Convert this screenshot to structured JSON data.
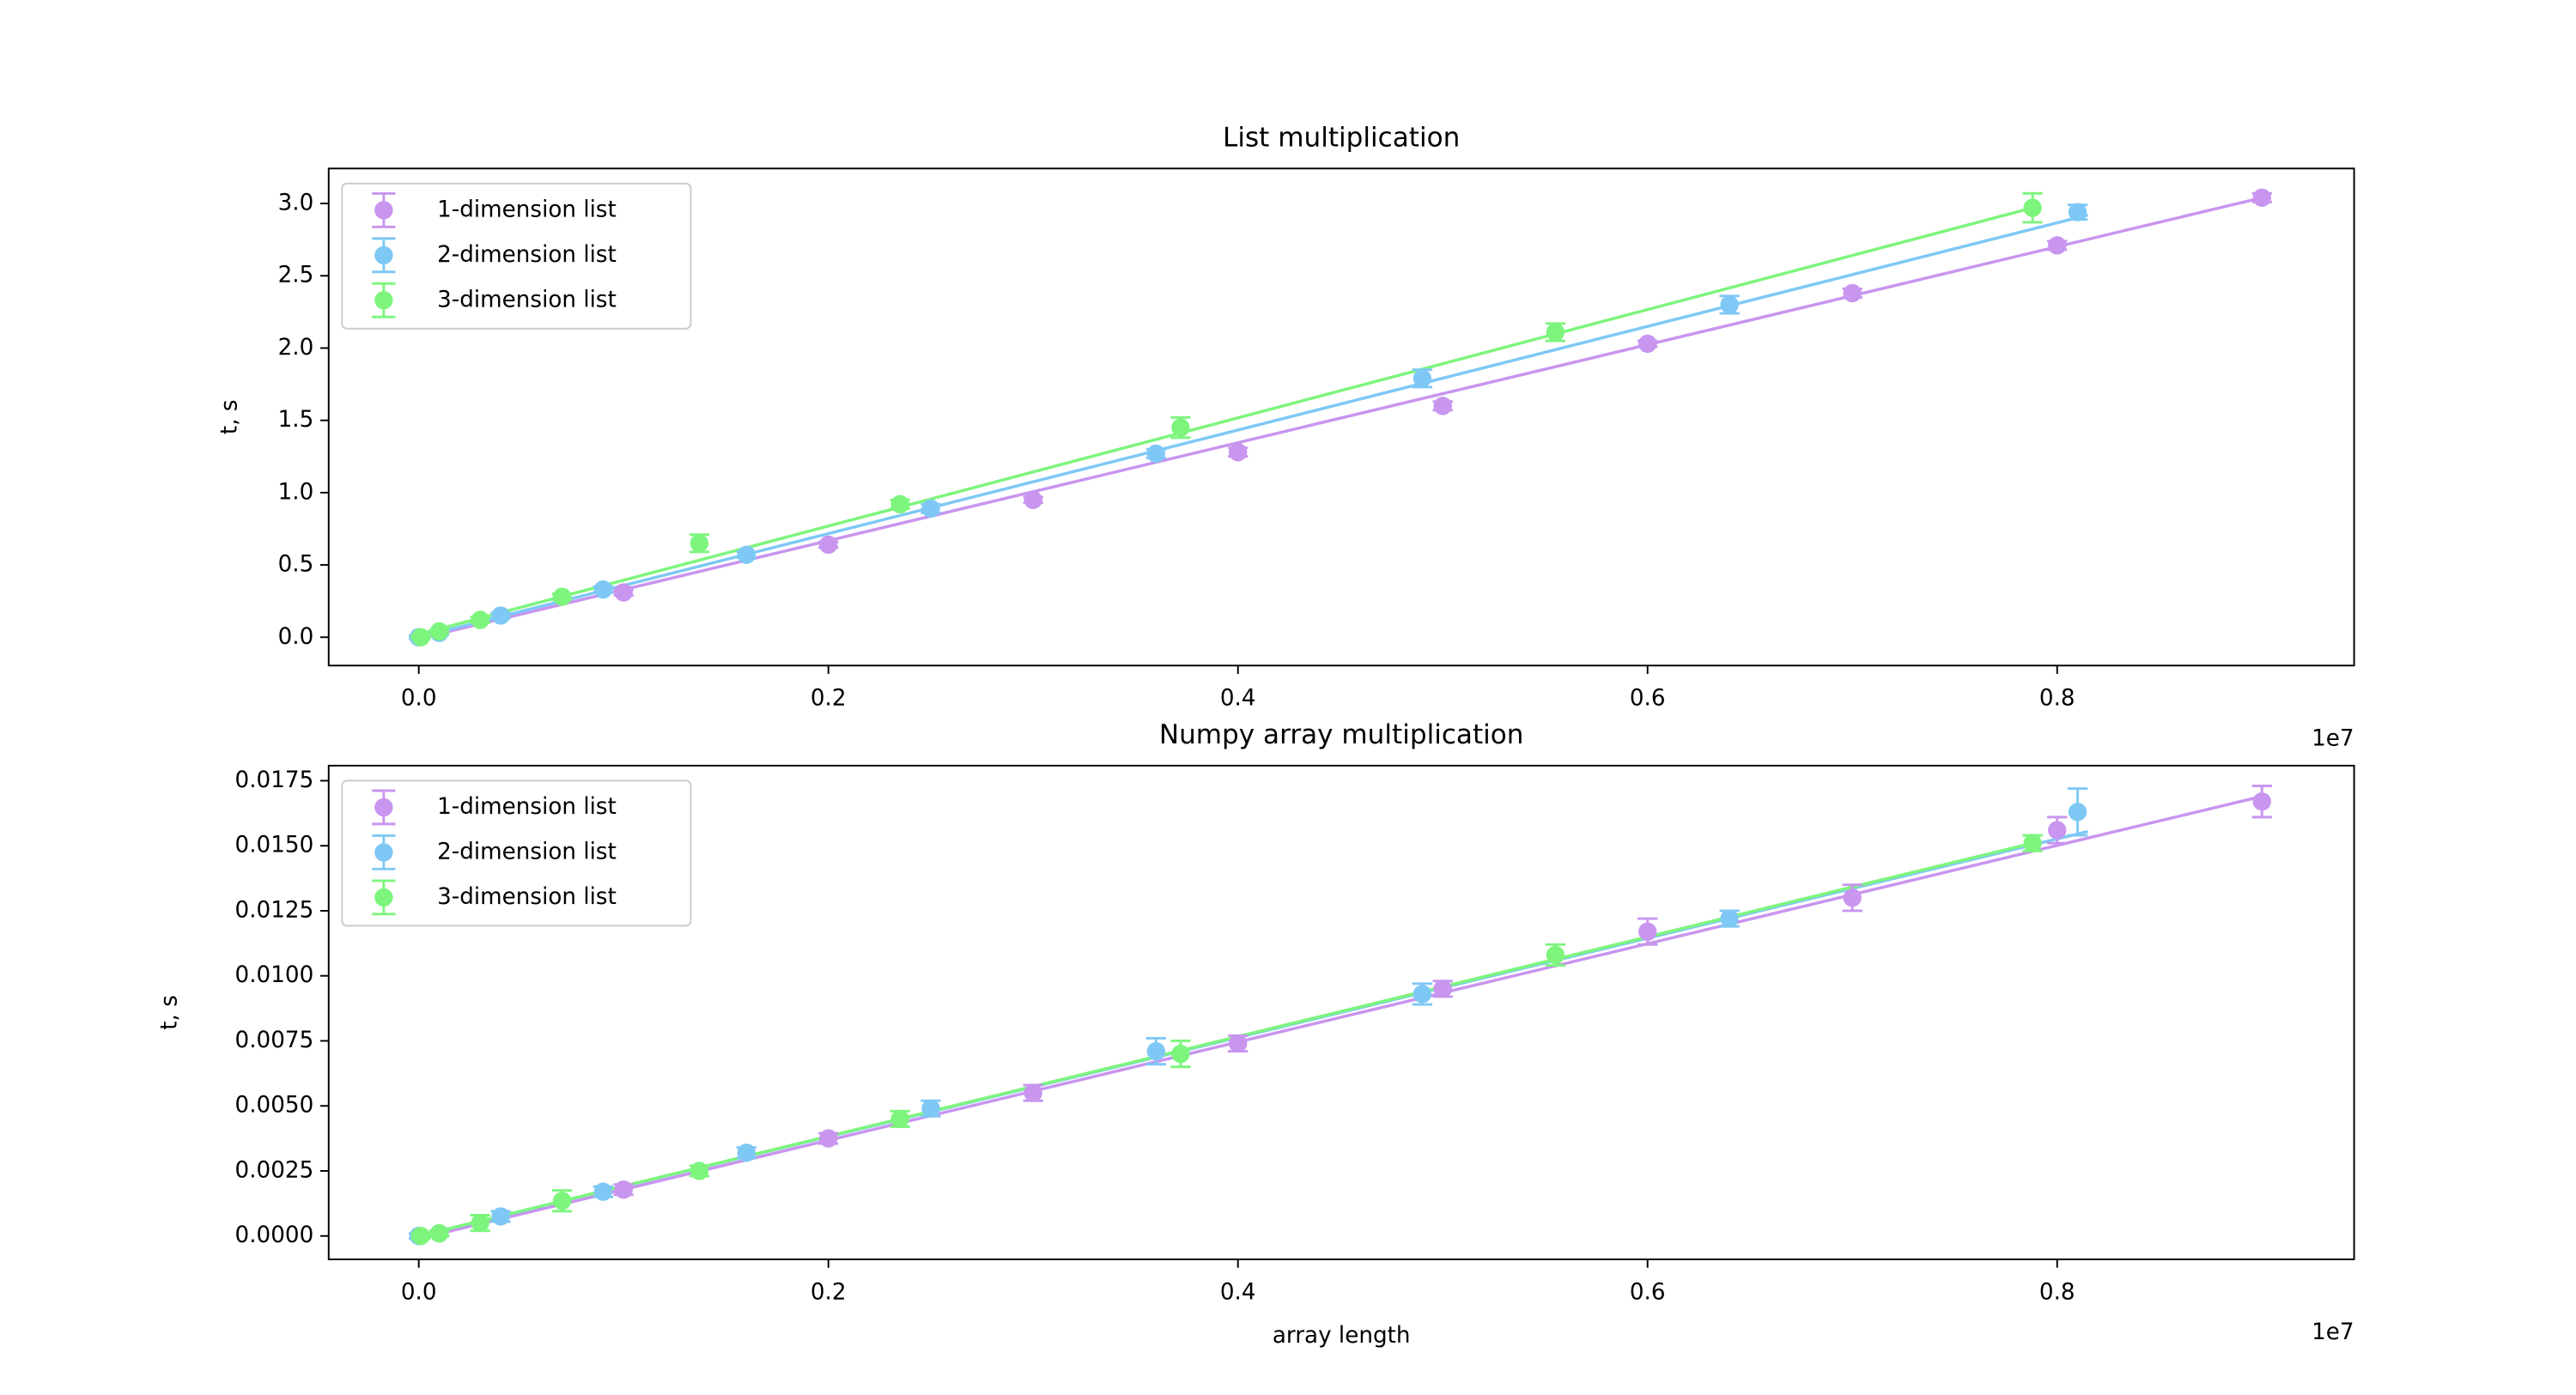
{
  "chart_data": [
    {
      "type": "errorbar",
      "title": "List multiplication",
      "ylabel": "t, s",
      "x_offset_label": "1e7",
      "xlim": [
        -0.044,
        0.945
      ],
      "ylim": [
        -0.196,
        3.242
      ],
      "xticks": [
        {
          "value": 0,
          "label": "0.0"
        },
        0.2,
        0.4,
        0.6,
        0.8
      ],
      "yticks": [
        {
          "value": 0,
          "label": "0.0"
        },
        0.5,
        {
          "value": 1,
          "label": "1.0"
        },
        1.5,
        {
          "value": 2,
          "label": "2.0"
        },
        2.5,
        {
          "value": 3,
          "label": "3.0"
        }
      ],
      "legend": "upper left",
      "series": [
        {
          "name": "1-dimension list",
          "color": "#c895ef",
          "x": [
            0,
            0.01,
            0.1,
            0.2,
            0.3,
            0.4,
            0.5,
            0.6,
            0.7,
            0.8,
            0.9
          ],
          "values": [
            0.0,
            0.03,
            0.31,
            0.64,
            0.95,
            1.28,
            1.6,
            2.03,
            2.38,
            2.71,
            3.04
          ],
          "errors": [
            0.01,
            0.01,
            0.02,
            0.02,
            0.02,
            0.03,
            0.03,
            0.02,
            0.03,
            0.03,
            0.03
          ],
          "fit_x": [
            0,
            0.9
          ],
          "fit_y": [
            -0.01,
            3.04
          ]
        },
        {
          "name": "2-dimension list",
          "color": "#7ec8f5",
          "x": [
            0,
            0.01,
            0.04,
            0.09,
            0.16,
            0.25,
            0.36,
            0.49,
            0.64,
            0.81
          ],
          "values": [
            0.0,
            0.03,
            0.15,
            0.33,
            0.57,
            0.89,
            1.27,
            1.79,
            2.3,
            2.94
          ],
          "errors": [
            0.01,
            0.01,
            0.02,
            0.02,
            0.02,
            0.03,
            0.03,
            0.06,
            0.06,
            0.05
          ],
          "fit_x": [
            0,
            0.815
          ],
          "fit_y": [
            0.0,
            2.92
          ]
        },
        {
          "name": "3-dimension list",
          "color": "#7df57d",
          "x": [
            0.001,
            0.01,
            0.03,
            0.07,
            0.137,
            0.235,
            0.372,
            0.555,
            0.788
          ],
          "values": [
            0.0,
            0.04,
            0.12,
            0.28,
            0.65,
            0.92,
            1.45,
            2.11,
            2.97
          ],
          "errors": [
            0.01,
            0.01,
            0.02,
            0.02,
            0.06,
            0.03,
            0.07,
            0.06,
            0.1
          ],
          "fit_x": [
            0,
            0.788
          ],
          "fit_y": [
            0.02,
            2.97
          ]
        }
      ]
    },
    {
      "type": "errorbar",
      "title": "Numpy array multiplication",
      "ylabel": "t, s",
      "xlabel": "array length",
      "x_offset_label": "1e7",
      "xlim": [
        -0.044,
        0.945
      ],
      "ylim": [
        -0.0009,
        0.01808
      ],
      "xticks": [
        {
          "value": 0,
          "label": "0.0"
        },
        0.2,
        0.4,
        0.6,
        0.8
      ],
      "yticks": [
        {
          "value": 0,
          "label": "0.0000"
        },
        0.0025,
        {
          "value": 0.005,
          "label": "0.0050"
        },
        0.0075,
        {
          "value": 0.01,
          "label": "0.0100"
        },
        0.0125,
        {
          "value": 0.015,
          "label": "0.0150"
        },
        0.0175
      ],
      "legend": "upper left",
      "series": [
        {
          "name": "1-dimension list",
          "color": "#c895ef",
          "x": [
            0,
            0.01,
            0.1,
            0.2,
            0.3,
            0.4,
            0.5,
            0.6,
            0.7,
            0.8,
            0.9
          ],
          "values": [
            0.0,
            0.0001,
            0.00178,
            0.00375,
            0.0055,
            0.0074,
            0.0095,
            0.0117,
            0.013,
            0.0156,
            0.0167
          ],
          "errors": [
            0.0001,
            0.0001,
            0.0002,
            0.0002,
            0.0003,
            0.0003,
            0.0003,
            0.0005,
            0.0005,
            0.0005,
            0.0006
          ],
          "fit_x": [
            0,
            0.9
          ],
          "fit_y": [
            -0.0001,
            0.0169
          ]
        },
        {
          "name": "2-dimension list",
          "color": "#7ec8f5",
          "x": [
            0,
            0.01,
            0.04,
            0.09,
            0.16,
            0.25,
            0.36,
            0.49,
            0.64,
            0.81
          ],
          "values": [
            0.0,
            0.0001,
            0.00075,
            0.0017,
            0.0032,
            0.0049,
            0.0071,
            0.0093,
            0.0122,
            0.0163
          ],
          "errors": [
            0.0001,
            0.0001,
            0.0002,
            0.0002,
            0.0002,
            0.0003,
            0.0005,
            0.0004,
            0.0003,
            0.0009
          ],
          "fit_x": [
            0,
            0.815
          ],
          "fit_y": [
            0.0,
            0.01555
          ]
        },
        {
          "name": "3-dimension list",
          "color": "#7df57d",
          "x": [
            0.001,
            0.01,
            0.03,
            0.07,
            0.137,
            0.235,
            0.372,
            0.555,
            0.788
          ],
          "values": [
            0.0,
            0.0001,
            0.0005,
            0.00135,
            0.0025,
            0.0045,
            0.007,
            0.0108,
            0.0151
          ],
          "errors": [
            0.0001,
            0.0001,
            0.0003,
            0.0004,
            0.0002,
            0.0003,
            0.0005,
            0.0004,
            0.0003
          ],
          "fit_x": [
            0,
            0.788
          ],
          "fit_y": [
            0.0,
            0.0151
          ]
        }
      ]
    }
  ]
}
